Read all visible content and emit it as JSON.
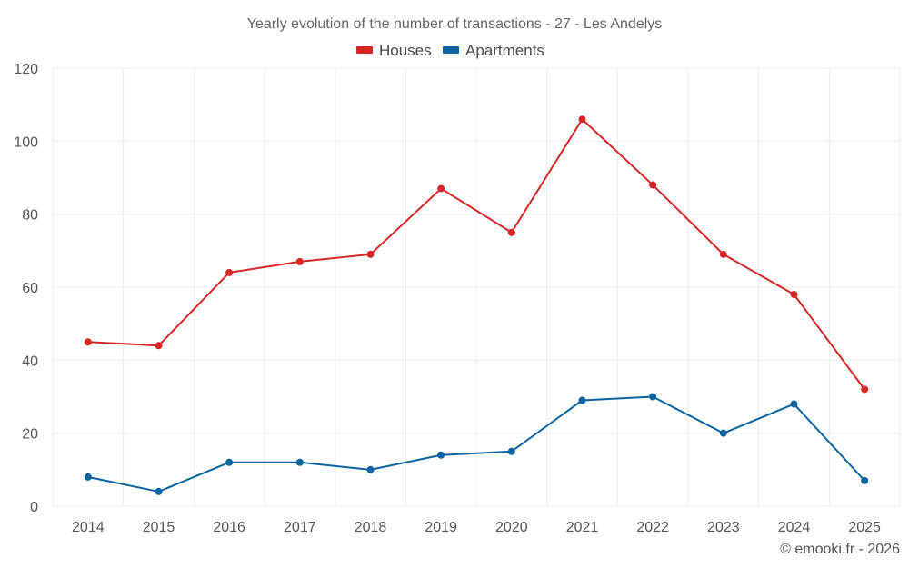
{
  "chart_data": {
    "type": "line",
    "title": "Yearly evolution of the number of transactions - 27 - Les Andelys",
    "xlabel": "",
    "ylabel": "",
    "ylim": [
      0,
      120
    ],
    "yticks": [
      0,
      20,
      40,
      60,
      80,
      100,
      120
    ],
    "categories": [
      "2014",
      "2015",
      "2016",
      "2017",
      "2018",
      "2019",
      "2020",
      "2021",
      "2022",
      "2023",
      "2024",
      "2025"
    ],
    "legend_position": "top-center",
    "grid": true,
    "series": [
      {
        "name": "Houses",
        "color": "#d62728",
        "values": [
          45,
          44,
          64,
          67,
          69,
          87,
          75,
          106,
          88,
          69,
          58,
          32
        ]
      },
      {
        "name": "Apartments",
        "color": "#0a64a0",
        "values": [
          8,
          4,
          12,
          12,
          10,
          14,
          15,
          29,
          30,
          20,
          28,
          7
        ]
      }
    ]
  },
  "credit": "© emooki.fr - 2026"
}
